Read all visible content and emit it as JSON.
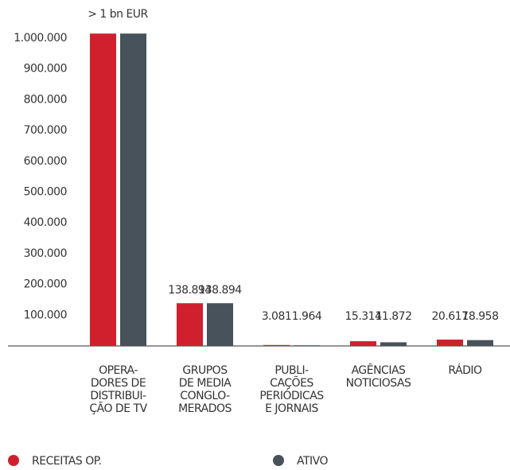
{
  "chart_data": {
    "type": "bar",
    "annotation": "> 1 bn EUR",
    "categories": [
      "OPERA-\nDORES DE\nDISTRIBUI-\nÇÃO DE TV",
      "GRUPOS\nDE MEDIA\nCONGLO-\nMERADOS",
      "PUBLI-\nCAÇÕES\nPERIÓDICAS\nE JORNAIS",
      "AGÊNCIAS\nNOTICIOSAS",
      "RÁDIO"
    ],
    "series": [
      {
        "name": "RECEITAS OP.",
        "color": "#d0202e",
        "values": [
          1015000,
          138894,
          3081,
          15314,
          20617
        ],
        "value_labels": [
          null,
          "138.894",
          "3.081",
          "15.314",
          "20.617"
        ]
      },
      {
        "name": "ATIVO",
        "color": "#47525a",
        "values": [
          1015000,
          138894,
          1964,
          11872,
          18958
        ],
        "value_labels": [
          null,
          "138.894",
          "1.964",
          "11.872",
          "18.958"
        ]
      }
    ],
    "ylim": [
      0,
      1050000
    ],
    "yticks": [
      {
        "value": 100000,
        "label": "100.000"
      },
      {
        "value": 200000,
        "label": "200.000"
      },
      {
        "value": 300000,
        "label": "300.000"
      },
      {
        "value": 400000,
        "label": "400.000"
      },
      {
        "value": 500000,
        "label": "500.000"
      },
      {
        "value": 600000,
        "label": "600.000"
      },
      {
        "value": 700000,
        "label": "700.000"
      },
      {
        "value": 800000,
        "label": "800.000"
      },
      {
        "value": 900000,
        "label": "900.000"
      },
      {
        "value": 1000000,
        "label": "1.000.000"
      }
    ],
    "grid": false
  }
}
